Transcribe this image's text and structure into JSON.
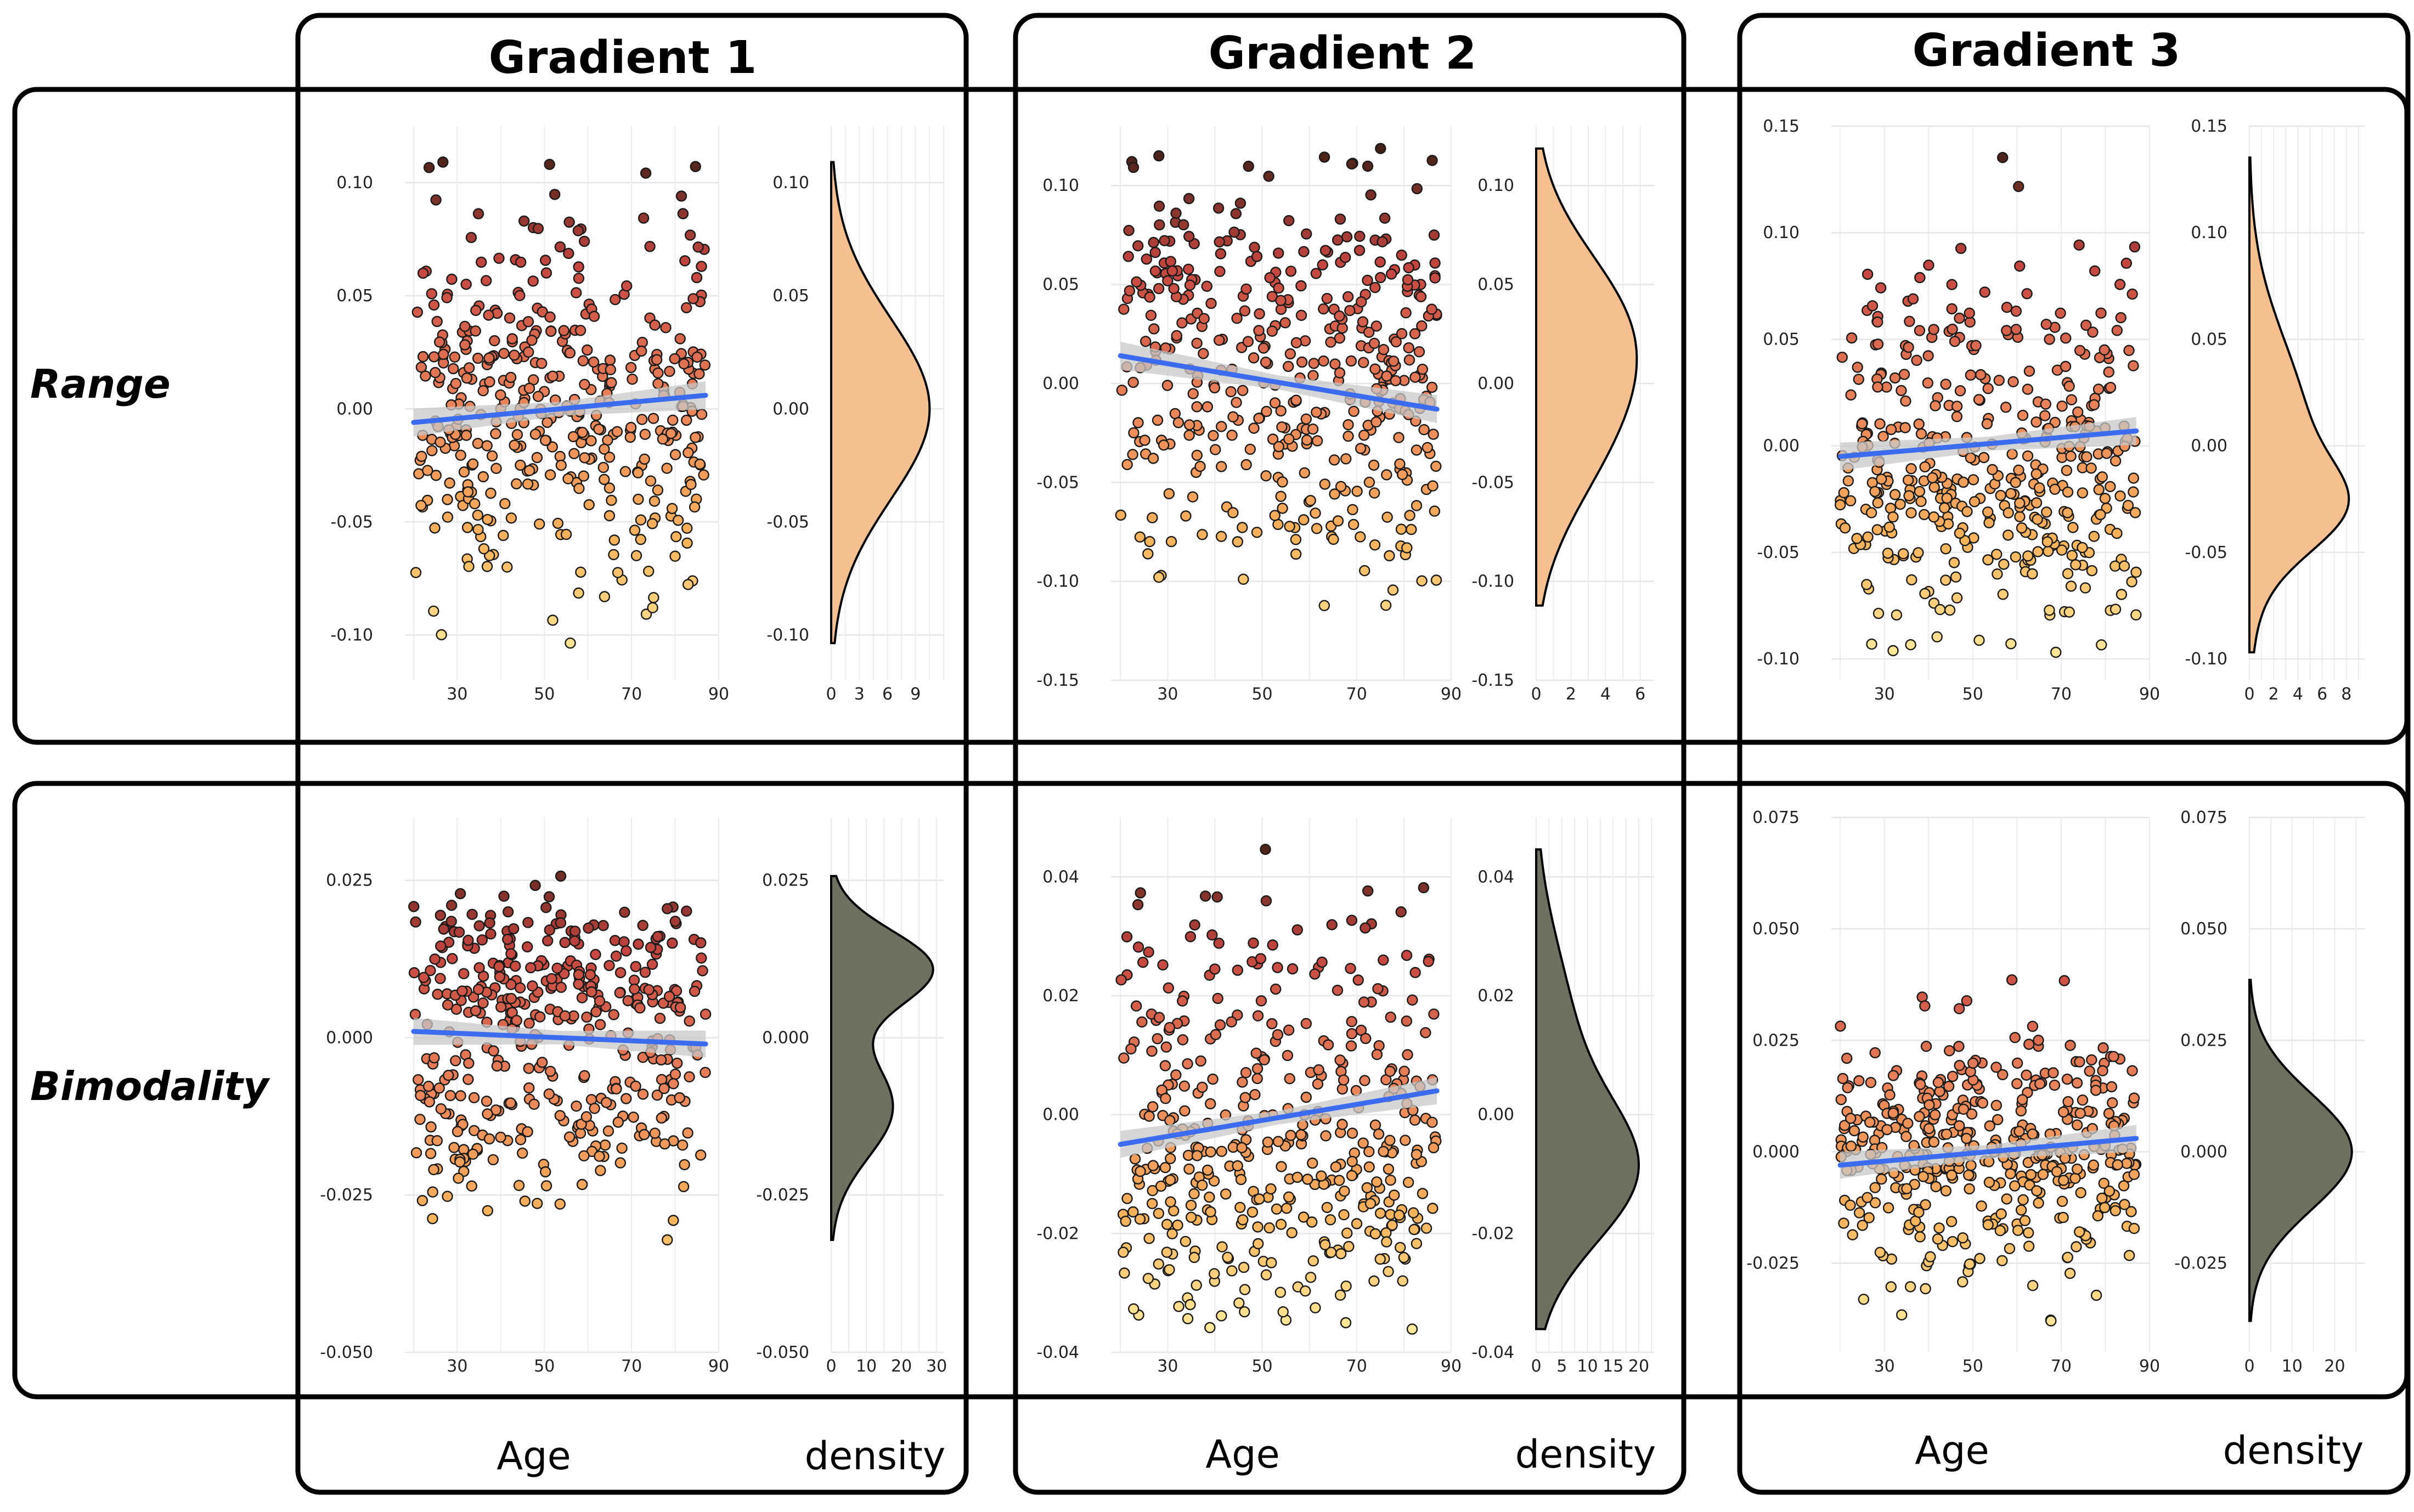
{
  "columns": [
    {
      "title": "Gradient 1"
    },
    {
      "title": "Gradient 2"
    },
    {
      "title": "Gradient 3"
    }
  ],
  "rows": [
    {
      "label": "Range",
      "density_fill": "#f4c08f"
    },
    {
      "label": "Bimodality",
      "density_fill": "#6e7160"
    }
  ],
  "footer": {
    "x_label": "Age",
    "density_label": "density"
  },
  "colors": {
    "regression_line": "#3b6cf0",
    "confidence_band": "#c8c8c8",
    "point_low": "#fff3a6",
    "point_mid_low": "#f6b45c",
    "point_mid": "#e9835a",
    "point_high": "#c4453f",
    "point_top": "#2a1a10"
  },
  "chart_data": [
    {
      "type": "scatter",
      "column": "Gradient 1",
      "row": "Range",
      "x_ticks": [
        "30",
        "50",
        "70",
        "90"
      ],
      "xlim": [
        18,
        90
      ],
      "y_ticks": [
        "-0.10",
        "-0.05",
        "0.00",
        "0.05",
        "0.10"
      ],
      "y_tick_values": [
        -0.1,
        -0.05,
        0.0,
        0.05,
        0.1
      ],
      "ylim": [
        -0.12,
        0.125
      ],
      "n_points": 420,
      "y_mean": 0.0,
      "y_sd": 0.04,
      "regression": {
        "x": [
          20,
          87
        ],
        "y": [
          -0.006,
          0.006
        ]
      },
      "density": {
        "x_ticks": [
          "0",
          "3",
          "6",
          "9"
        ],
        "xlim": [
          0,
          12
        ],
        "peak": 10.5,
        "modes": [
          {
            "mu": 0.0,
            "sd": 0.04,
            "w": 1.0
          }
        ]
      },
      "grid": true
    },
    {
      "type": "scatter",
      "column": "Gradient 2",
      "row": "Range",
      "x_ticks": [
        "30",
        "50",
        "70",
        "90"
      ],
      "xlim": [
        18,
        90
      ],
      "y_ticks": [
        "-0.15",
        "-0.10",
        "-0.05",
        "0.00",
        "0.05",
        "0.10"
      ],
      "y_tick_values": [
        -0.15,
        -0.1,
        -0.05,
        0.0,
        0.05,
        0.1
      ],
      "ylim": [
        -0.15,
        0.13
      ],
      "n_points": 420,
      "y_mean": 0.0,
      "y_sd": 0.05,
      "regression": {
        "x": [
          20,
          87
        ],
        "y": [
          0.014,
          -0.013
        ]
      },
      "density": {
        "x_ticks": [
          "0",
          "2",
          "4",
          "6"
        ],
        "xlim": [
          0,
          6.8
        ],
        "peak": 5.8,
        "modes": [
          {
            "mu": 0.03,
            "sd": 0.04,
            "w": 0.6
          },
          {
            "mu": -0.03,
            "sd": 0.04,
            "w": 0.4
          }
        ]
      },
      "grid": true
    },
    {
      "type": "scatter",
      "column": "Gradient 3",
      "row": "Range",
      "x_ticks": [
        "30",
        "50",
        "70",
        "90"
      ],
      "xlim": [
        18,
        90
      ],
      "y_ticks": [
        "-0.10",
        "-0.05",
        "0.00",
        "0.05",
        "0.10",
        "0.15"
      ],
      "y_tick_values": [
        -0.1,
        -0.05,
        0.0,
        0.05,
        0.1,
        0.15
      ],
      "ylim": [
        -0.11,
        0.15
      ],
      "n_points": 420,
      "y_mean": 0.0,
      "y_sd": 0.045,
      "regression": {
        "x": [
          20,
          87
        ],
        "y": [
          -0.005,
          0.007
        ]
      },
      "density": {
        "x_ticks": [
          "0",
          "2",
          "4",
          "6",
          "8"
        ],
        "xlim": [
          0,
          9.5
        ],
        "peak": 8.2,
        "modes": [
          {
            "mu": 0.005,
            "sd": 0.045,
            "w": 0.7
          },
          {
            "mu": -0.03,
            "sd": 0.02,
            "w": 0.3
          }
        ]
      },
      "grid": true
    },
    {
      "type": "scatter",
      "column": "Gradient 1",
      "row": "Bimodality",
      "x_ticks": [
        "30",
        "50",
        "70",
        "90"
      ],
      "xlim": [
        18,
        90
      ],
      "y_ticks": [
        "-0.050",
        "-0.025",
        "0.000",
        "0.025"
      ],
      "y_tick_values": [
        -0.05,
        -0.025,
        0.0,
        0.025
      ],
      "ylim": [
        -0.05,
        0.035
      ],
      "n_points": 420,
      "y_mean": 0.0,
      "y_sd": 0.014,
      "regression": {
        "x": [
          20,
          87
        ],
        "y": [
          0.001,
          -0.001
        ]
      },
      "density": {
        "x_ticks": [
          "0",
          "10",
          "20",
          "30"
        ],
        "xlim": [
          0,
          32
        ],
        "peak": 29,
        "modes": [
          {
            "mu": 0.011,
            "sd": 0.006,
            "w": 0.55
          },
          {
            "mu": -0.011,
            "sd": 0.008,
            "w": 0.45
          }
        ]
      },
      "grid": true
    },
    {
      "type": "scatter",
      "column": "Gradient 2",
      "row": "Bimodality",
      "x_ticks": [
        "30",
        "50",
        "70",
        "90"
      ],
      "xlim": [
        18,
        90
      ],
      "y_ticks": [
        "-0.04",
        "-0.02",
        "0.00",
        "0.02",
        "0.04"
      ],
      "y_tick_values": [
        -0.04,
        -0.02,
        0.0,
        0.02,
        0.04
      ],
      "ylim": [
        -0.04,
        0.05
      ],
      "n_points": 420,
      "y_mean": 0.0,
      "y_sd": 0.017,
      "regression": {
        "x": [
          20,
          87
        ],
        "y": [
          -0.005,
          0.004
        ]
      },
      "density": {
        "x_ticks": [
          "0",
          "5",
          "10",
          "15",
          "20"
        ],
        "xlim": [
          0,
          23
        ],
        "peak": 20,
        "modes": [
          {
            "mu": -0.01,
            "sd": 0.012,
            "w": 0.7
          },
          {
            "mu": 0.015,
            "sd": 0.015,
            "w": 0.3
          }
        ]
      },
      "grid": true
    },
    {
      "type": "scatter",
      "column": "Gradient 3",
      "row": "Bimodality",
      "x_ticks": [
        "30",
        "50",
        "70",
        "90"
      ],
      "xlim": [
        18,
        90
      ],
      "y_ticks": [
        "-0.025",
        "0.000",
        "0.025",
        "0.050",
        "0.075"
      ],
      "y_tick_values": [
        -0.025,
        0.0,
        0.025,
        0.05,
        0.075
      ],
      "ylim": [
        -0.045,
        0.075
      ],
      "n_points": 420,
      "y_mean": 0.0,
      "y_sd": 0.014,
      "regression": {
        "x": [
          20,
          87
        ],
        "y": [
          -0.003,
          0.003
        ]
      },
      "density": {
        "x_ticks": [
          "0",
          "10",
          "20"
        ],
        "xlim": [
          0,
          27
        ],
        "peak": 24,
        "modes": [
          {
            "mu": 0.0,
            "sd": 0.013,
            "w": 1.0
          }
        ]
      },
      "grid": true
    }
  ]
}
